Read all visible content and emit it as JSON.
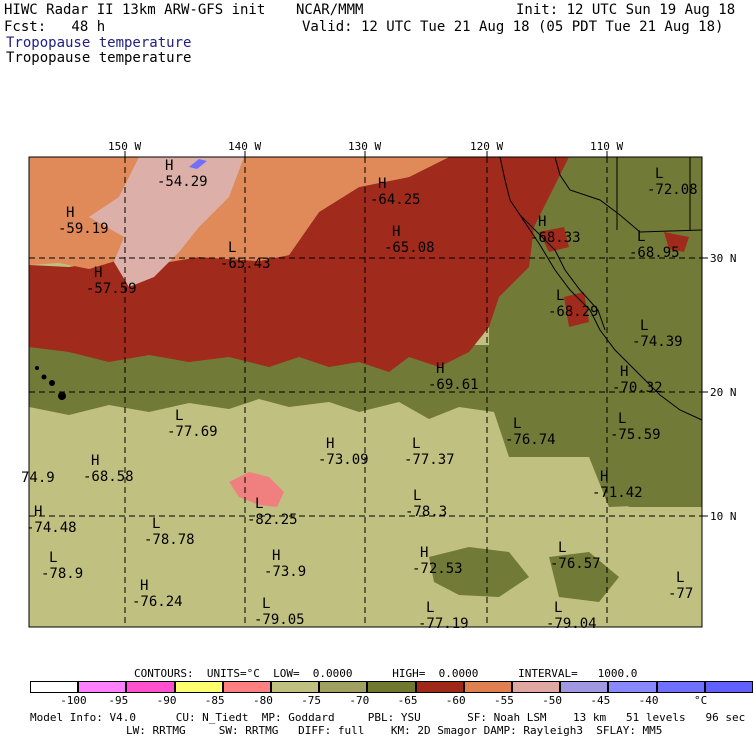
{
  "header": {
    "left_line1": "HIWC Radar II 13km ARW-GFS init",
    "center_line1": "NCAR/MMM",
    "init": "Init: 12 UTC Sun 19 Aug 18",
    "fcst": "Fcst:   48 h",
    "valid": "Valid: 12 UTC Tue 21 Aug 18 (05 PDT Tue 21 Aug 18)",
    "field_line1": "Tropopause temperature",
    "field_line2": "Tropopause temperature"
  },
  "axes": {
    "lon_labels": [
      "150 W",
      "140 W",
      "130 W",
      "120 W",
      "110 W"
    ],
    "lat_labels": [
      "30 N",
      "20 N",
      "10 N"
    ]
  },
  "map_labels": [
    {
      "kind": "H",
      "value": "-54.29"
    },
    {
      "kind": "H",
      "value": "-59.19"
    },
    {
      "kind": "H",
      "value": "-57.59"
    },
    {
      "kind": "L",
      "value": "-65.43"
    },
    {
      "kind": "H",
      "value": "-64.25"
    },
    {
      "kind": "H",
      "value": "-65.08"
    },
    {
      "kind": "H",
      "value": "-68.33"
    },
    {
      "kind": "L",
      "value": "-72.08"
    },
    {
      "kind": "L",
      "value": "-68.95"
    },
    {
      "kind": "L",
      "value": "-68.29"
    },
    {
      "kind": "L",
      "value": "-74.39"
    },
    {
      "kind": "H",
      "value": "-69.61"
    },
    {
      "kind": "H",
      "value": "-70.32"
    },
    {
      "kind": "L",
      "value": "-77.69"
    },
    {
      "kind": "H",
      "value": "-73.09"
    },
    {
      "kind": "L",
      "value": "-77.37"
    },
    {
      "kind": "L",
      "value": "-76.74"
    },
    {
      "kind": "L",
      "value": "-75.59"
    },
    {
      "kind": "",
      "value": "74.9"
    },
    {
      "kind": "H",
      "value": "-68.58"
    },
    {
      "kind": "H",
      "value": "-71.42"
    },
    {
      "kind": "L",
      "value": "-78.3"
    },
    {
      "kind": "H",
      "value": "-74.48"
    },
    {
      "kind": "L",
      "value": "-78.78"
    },
    {
      "kind": "L",
      "value": "-82.25"
    },
    {
      "kind": "L",
      "value": "-78.9"
    },
    {
      "kind": "H",
      "value": "-73.9"
    },
    {
      "kind": "H",
      "value": "-72.53"
    },
    {
      "kind": "L",
      "value": "-76.57"
    },
    {
      "kind": "H",
      "value": "-76.24"
    },
    {
      "kind": "L",
      "value": "-79.05"
    },
    {
      "kind": "L",
      "value": "-77.19"
    },
    {
      "kind": "L",
      "value": "-79.04"
    },
    {
      "kind": "L",
      "value": "-77"
    }
  ],
  "contours_line": "CONTOURS:  UNITS=°C  LOW=  0.0000      HIGH=  0.0000      INTERVAL=   1000.0",
  "colorbar": {
    "colors": [
      "#ffffff",
      "#ff80ff",
      "#ff50d0",
      "#ffff70",
      "#ff8080",
      "#c0c080",
      "#a0a060",
      "#707830",
      "#a02818",
      "#e08050",
      "#e0a8a0",
      "#a098e0",
      "#8888ff",
      "#7070ff",
      "#6060ff"
    ],
    "labels": [
      "-100",
      "-95",
      "-90",
      "-85",
      "-80",
      "-75",
      "-70",
      "-65",
      "-60",
      "-55",
      "-50",
      "-45",
      "-40"
    ],
    "unit": "°C"
  },
  "footer": {
    "line1": "Model Info: V4.0      CU: N_Tiedt  MP: Goddard     PBL: YSU       SF: Noah LSM    13 km   51 levels   96 sec",
    "line2": "LW: RRTMG     SW: RRTMG   DIFF: full    KM: 2D Smagor DAMP: Rayleigh3  SFLAY: MM5"
  },
  "legend_colors": {
    "pale_pink": "#dcb0a8",
    "salmon": "#e08a5a",
    "dark_red": "#a02a1c",
    "olive": "#727a38",
    "khaki": "#c0c080",
    "pink": "#f08080",
    "ocean_blue": "#7070ff"
  }
}
